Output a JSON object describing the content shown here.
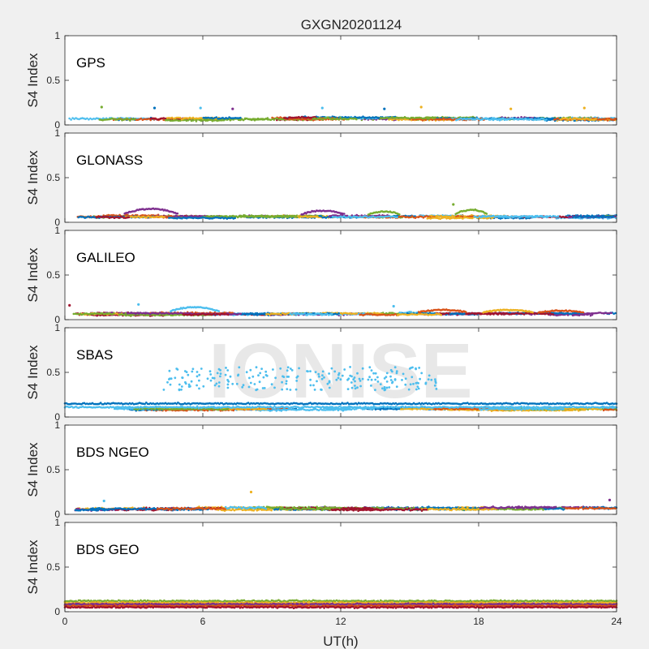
{
  "figure": {
    "title": "GXGN20201124",
    "xlabel": "UT(h)",
    "ylabel": "S4 Index",
    "watermark": "IONISE",
    "background": "#f0f0f0",
    "axes_background": "#ffffff"
  },
  "chart_data": {
    "type": "scatter",
    "title": "GXGN20201124",
    "xlabel": "UT(h)",
    "ylabel": "S4 Index",
    "xlim": [
      0,
      24
    ],
    "ylim": [
      0,
      1
    ],
    "xticks": [
      "0",
      "6",
      "12",
      "18",
      "24"
    ],
    "xtick_values": [
      0,
      6,
      12,
      18,
      24
    ],
    "yticks": [
      "0",
      "0.5",
      "1"
    ],
    "ytick_values": [
      0,
      0.5,
      1
    ],
    "grid": false,
    "panels": [
      {
        "label": "GPS",
        "colors": [
          "#0072BD",
          "#D95319",
          "#EDB120",
          "#7E2F8E",
          "#77AC30",
          "#4DBEEE",
          "#A2142F"
        ],
        "base": 0.07,
        "spread": 0.035,
        "spikes": [
          {
            "x": 1.6,
            "y": 0.2
          },
          {
            "x": 3.9,
            "y": 0.19
          },
          {
            "x": 5.9,
            "y": 0.19
          },
          {
            "x": 7.3,
            "y": 0.18
          },
          {
            "x": 11.2,
            "y": 0.19
          },
          {
            "x": 13.9,
            "y": 0.18
          },
          {
            "x": 15.5,
            "y": 0.2
          },
          {
            "x": 19.4,
            "y": 0.18
          },
          {
            "x": 22.6,
            "y": 0.19
          }
        ]
      },
      {
        "label": "GLONASS",
        "colors": [
          "#0072BD",
          "#D95319",
          "#EDB120",
          "#7E2F8E",
          "#77AC30",
          "#4DBEEE",
          "#A2142F"
        ],
        "base": 0.06,
        "spread": 0.03,
        "arcs": [
          {
            "x0": 2.6,
            "x1": 4.9,
            "y": 0.15,
            "color": "#7E2F8E"
          },
          {
            "x0": 10.3,
            "x1": 12.2,
            "y": 0.13,
            "color": "#7E2F8E"
          },
          {
            "x0": 13.2,
            "x1": 14.6,
            "y": 0.12,
            "color": "#77AC30"
          },
          {
            "x0": 17.0,
            "x1": 18.4,
            "y": 0.14,
            "color": "#77AC30"
          }
        ],
        "spikes": [
          {
            "x": 16.9,
            "y": 0.2
          }
        ]
      },
      {
        "label": "GALILEO",
        "colors": [
          "#0072BD",
          "#D95319",
          "#EDB120",
          "#7E2F8E",
          "#77AC30",
          "#4DBEEE",
          "#A2142F"
        ],
        "base": 0.065,
        "spread": 0.03,
        "arcs": [
          {
            "x0": 4.6,
            "x1": 6.7,
            "y": 0.14,
            "color": "#4DBEEE"
          },
          {
            "x0": 15.4,
            "x1": 17.5,
            "y": 0.11,
            "color": "#D95319"
          },
          {
            "x0": 18.2,
            "x1": 20.4,
            "y": 0.11,
            "color": "#EDB120"
          },
          {
            "x0": 20.6,
            "x1": 22.6,
            "y": 0.1,
            "color": "#D95319"
          }
        ],
        "spikes": [
          {
            "x": 0.2,
            "y": 0.16
          },
          {
            "x": 3.2,
            "y": 0.17
          },
          {
            "x": 14.3,
            "y": 0.15
          }
        ]
      },
      {
        "label": "SBAS",
        "colors": [
          "#0072BD",
          "#4DBEEE",
          "#EDB120",
          "#D95319",
          "#77AC30"
        ],
        "base": 0.09,
        "spread": 0.03,
        "bands": [
          {
            "y": 0.15,
            "from": 0,
            "to": 24,
            "color": "#0072BD"
          },
          {
            "y": 0.11,
            "from": 0,
            "to": 24,
            "color": "#4DBEEE"
          }
        ],
        "cloud": {
          "x0": 4.3,
          "x1": 16.2,
          "ymin": 0.3,
          "ymax": 0.56,
          "color": "#4DBEEE"
        }
      },
      {
        "label": "BDS NGEO",
        "colors": [
          "#0072BD",
          "#D95319",
          "#EDB120",
          "#7E2F8E",
          "#77AC30",
          "#4DBEEE",
          "#A2142F"
        ],
        "base": 0.065,
        "spread": 0.035,
        "spikes": [
          {
            "x": 8.1,
            "y": 0.25
          },
          {
            "x": 1.7,
            "y": 0.15
          },
          {
            "x": 23.7,
            "y": 0.16
          }
        ]
      },
      {
        "label": "BDS GEO",
        "colors": [
          "#77AC30",
          "#D95319",
          "#EDB120",
          "#7E2F8E",
          "#0072BD",
          "#4DBEEE",
          "#A2142F"
        ],
        "base": 0.08,
        "spread": 0.02,
        "bands": [
          {
            "y": 0.12,
            "from": 0,
            "to": 24,
            "color": "#77AC30"
          },
          {
            "y": 0.1,
            "from": 0,
            "to": 24,
            "color": "#EDB120"
          },
          {
            "y": 0.085,
            "from": 0,
            "to": 24,
            "color": "#7E2F8E"
          },
          {
            "y": 0.065,
            "from": 0,
            "to": 24,
            "color": "#D95319"
          },
          {
            "y": 0.05,
            "from": 0,
            "to": 24,
            "color": "#A2142F"
          }
        ]
      }
    ]
  }
}
